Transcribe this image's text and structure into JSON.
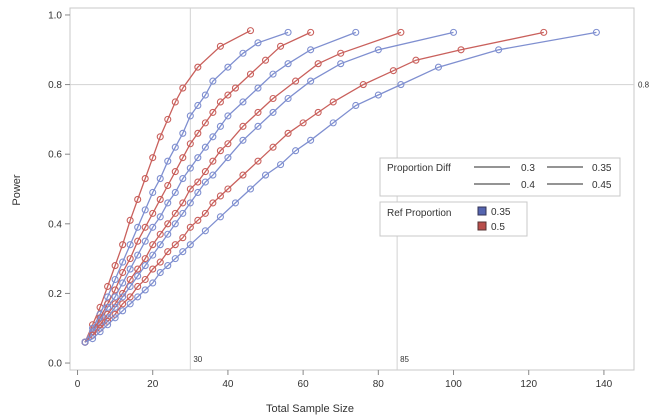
{
  "chart_data": {
    "type": "line",
    "title": "",
    "xlabel": "Total Sample Size",
    "ylabel": "Power",
    "xlim": [
      -2,
      148
    ],
    "ylim": [
      -0.02,
      1.02
    ],
    "x_ticks": [
      0,
      20,
      40,
      60,
      80,
      100,
      120,
      140
    ],
    "y_ticks": [
      0.0,
      0.2,
      0.4,
      0.6,
      0.8,
      1.0
    ],
    "x_tick_labels": [
      "0",
      "20",
      "40",
      "60",
      "80",
      "100",
      "120",
      "140"
    ],
    "y_tick_labels": [
      "0.0",
      "0.2",
      "0.4",
      "0.6",
      "0.8",
      "1.0"
    ],
    "grid": false,
    "reference_lines": {
      "horizontal": [
        {
          "value": 0.8,
          "label": "0.8"
        }
      ],
      "vertical": [
        {
          "value": 30,
          "label": "30"
        },
        {
          "value": 85,
          "label": "85"
        }
      ]
    },
    "legend": {
      "position": "right",
      "line_title": "Proportion Diff",
      "line_entries": [
        "0.3",
        "0.35",
        "0.4",
        "0.45"
      ],
      "color_title": "Ref Proportion",
      "color_entries": [
        {
          "label": "0.35",
          "color": "#5565b0"
        },
        {
          "label": "0.5",
          "color": "#b94e4b"
        }
      ]
    },
    "colors": {
      "blue": "#7f8fd0",
      "red": "#c9605c"
    },
    "series": [
      {
        "ref": "0.5",
        "diff": "0.45",
        "color": "red",
        "x": [
          2,
          4,
          6,
          8,
          10,
          12,
          14,
          16,
          18,
          20,
          22,
          24,
          26,
          28,
          32,
          38,
          46
        ],
        "y": [
          0.06,
          0.11,
          0.16,
          0.22,
          0.28,
          0.34,
          0.41,
          0.47,
          0.53,
          0.59,
          0.65,
          0.7,
          0.75,
          0.79,
          0.85,
          0.91,
          0.955
        ]
      },
      {
        "ref": "0.35",
        "diff": "0.45",
        "color": "blue",
        "x": [
          2,
          4,
          6,
          8,
          10,
          12,
          14,
          16,
          18,
          20,
          22,
          24,
          26,
          28,
          30,
          32,
          34,
          36,
          40,
          44,
          48,
          56
        ],
        "y": [
          0.06,
          0.1,
          0.14,
          0.19,
          0.24,
          0.29,
          0.34,
          0.39,
          0.44,
          0.49,
          0.53,
          0.58,
          0.62,
          0.66,
          0.71,
          0.74,
          0.77,
          0.81,
          0.85,
          0.89,
          0.92,
          0.95
        ]
      },
      {
        "ref": "0.5",
        "diff": "0.4",
        "color": "red",
        "x": [
          2,
          4,
          6,
          8,
          10,
          12,
          14,
          16,
          18,
          20,
          22,
          24,
          26,
          28,
          30,
          32,
          34,
          36,
          38,
          40,
          42,
          46,
          50,
          54,
          62
        ],
        "y": [
          0.06,
          0.09,
          0.13,
          0.17,
          0.21,
          0.26,
          0.3,
          0.35,
          0.39,
          0.43,
          0.47,
          0.51,
          0.55,
          0.59,
          0.63,
          0.66,
          0.69,
          0.72,
          0.75,
          0.77,
          0.79,
          0.83,
          0.87,
          0.91,
          0.95
        ]
      },
      {
        "ref": "0.35",
        "diff": "0.4",
        "color": "blue",
        "x": [
          2,
          4,
          6,
          8,
          10,
          12,
          14,
          16,
          18,
          20,
          22,
          24,
          26,
          28,
          30,
          32,
          34,
          36,
          38,
          40,
          44,
          48,
          52,
          56,
          62,
          74
        ],
        "y": [
          0.06,
          0.09,
          0.12,
          0.16,
          0.19,
          0.23,
          0.27,
          0.31,
          0.35,
          0.39,
          0.42,
          0.46,
          0.49,
          0.53,
          0.56,
          0.59,
          0.62,
          0.65,
          0.68,
          0.71,
          0.75,
          0.79,
          0.83,
          0.86,
          0.9,
          0.95
        ]
      },
      {
        "ref": "0.5",
        "diff": "0.35",
        "color": "red",
        "x": [
          2,
          4,
          6,
          8,
          10,
          12,
          14,
          16,
          18,
          20,
          22,
          24,
          26,
          28,
          30,
          32,
          34,
          36,
          38,
          40,
          44,
          48,
          52,
          58,
          64,
          70,
          86
        ],
        "y": [
          0.06,
          0.08,
          0.11,
          0.14,
          0.17,
          0.2,
          0.24,
          0.27,
          0.3,
          0.34,
          0.37,
          0.4,
          0.43,
          0.46,
          0.5,
          0.52,
          0.55,
          0.58,
          0.61,
          0.63,
          0.68,
          0.72,
          0.76,
          0.81,
          0.86,
          0.89,
          0.95
        ]
      },
      {
        "ref": "0.35",
        "diff": "0.35",
        "color": "blue",
        "x": [
          2,
          4,
          6,
          8,
          10,
          12,
          14,
          16,
          18,
          20,
          22,
          24,
          26,
          28,
          30,
          32,
          34,
          36,
          40,
          44,
          48,
          52,
          56,
          62,
          70,
          80,
          100
        ],
        "y": [
          0.06,
          0.08,
          0.1,
          0.13,
          0.16,
          0.19,
          0.22,
          0.25,
          0.28,
          0.31,
          0.34,
          0.37,
          0.4,
          0.43,
          0.46,
          0.49,
          0.52,
          0.54,
          0.59,
          0.64,
          0.68,
          0.72,
          0.76,
          0.81,
          0.86,
          0.9,
          0.95
        ]
      },
      {
        "ref": "0.5",
        "diff": "0.3",
        "color": "red",
        "x": [
          2,
          4,
          6,
          8,
          10,
          12,
          14,
          16,
          18,
          20,
          22,
          24,
          26,
          28,
          30,
          32,
          34,
          36,
          38,
          40,
          44,
          48,
          52,
          56,
          60,
          64,
          68,
          76,
          84,
          90,
          102,
          124
        ],
        "y": [
          0.06,
          0.08,
          0.1,
          0.12,
          0.14,
          0.17,
          0.19,
          0.22,
          0.24,
          0.27,
          0.29,
          0.32,
          0.34,
          0.36,
          0.39,
          0.41,
          0.43,
          0.46,
          0.48,
          0.5,
          0.54,
          0.58,
          0.62,
          0.66,
          0.69,
          0.72,
          0.75,
          0.8,
          0.84,
          0.87,
          0.9,
          0.95
        ]
      },
      {
        "ref": "0.35",
        "diff": "0.3",
        "color": "blue",
        "x": [
          2,
          4,
          6,
          8,
          10,
          12,
          14,
          16,
          18,
          20,
          22,
          24,
          26,
          28,
          30,
          34,
          38,
          42,
          46,
          50,
          54,
          58,
          62,
          68,
          74,
          80,
          86,
          96,
          112,
          138
        ],
        "y": [
          0.06,
          0.07,
          0.09,
          0.11,
          0.13,
          0.15,
          0.17,
          0.19,
          0.21,
          0.23,
          0.26,
          0.28,
          0.3,
          0.32,
          0.34,
          0.38,
          0.42,
          0.46,
          0.5,
          0.54,
          0.57,
          0.61,
          0.64,
          0.69,
          0.74,
          0.77,
          0.8,
          0.85,
          0.9,
          0.95
        ]
      }
    ]
  }
}
